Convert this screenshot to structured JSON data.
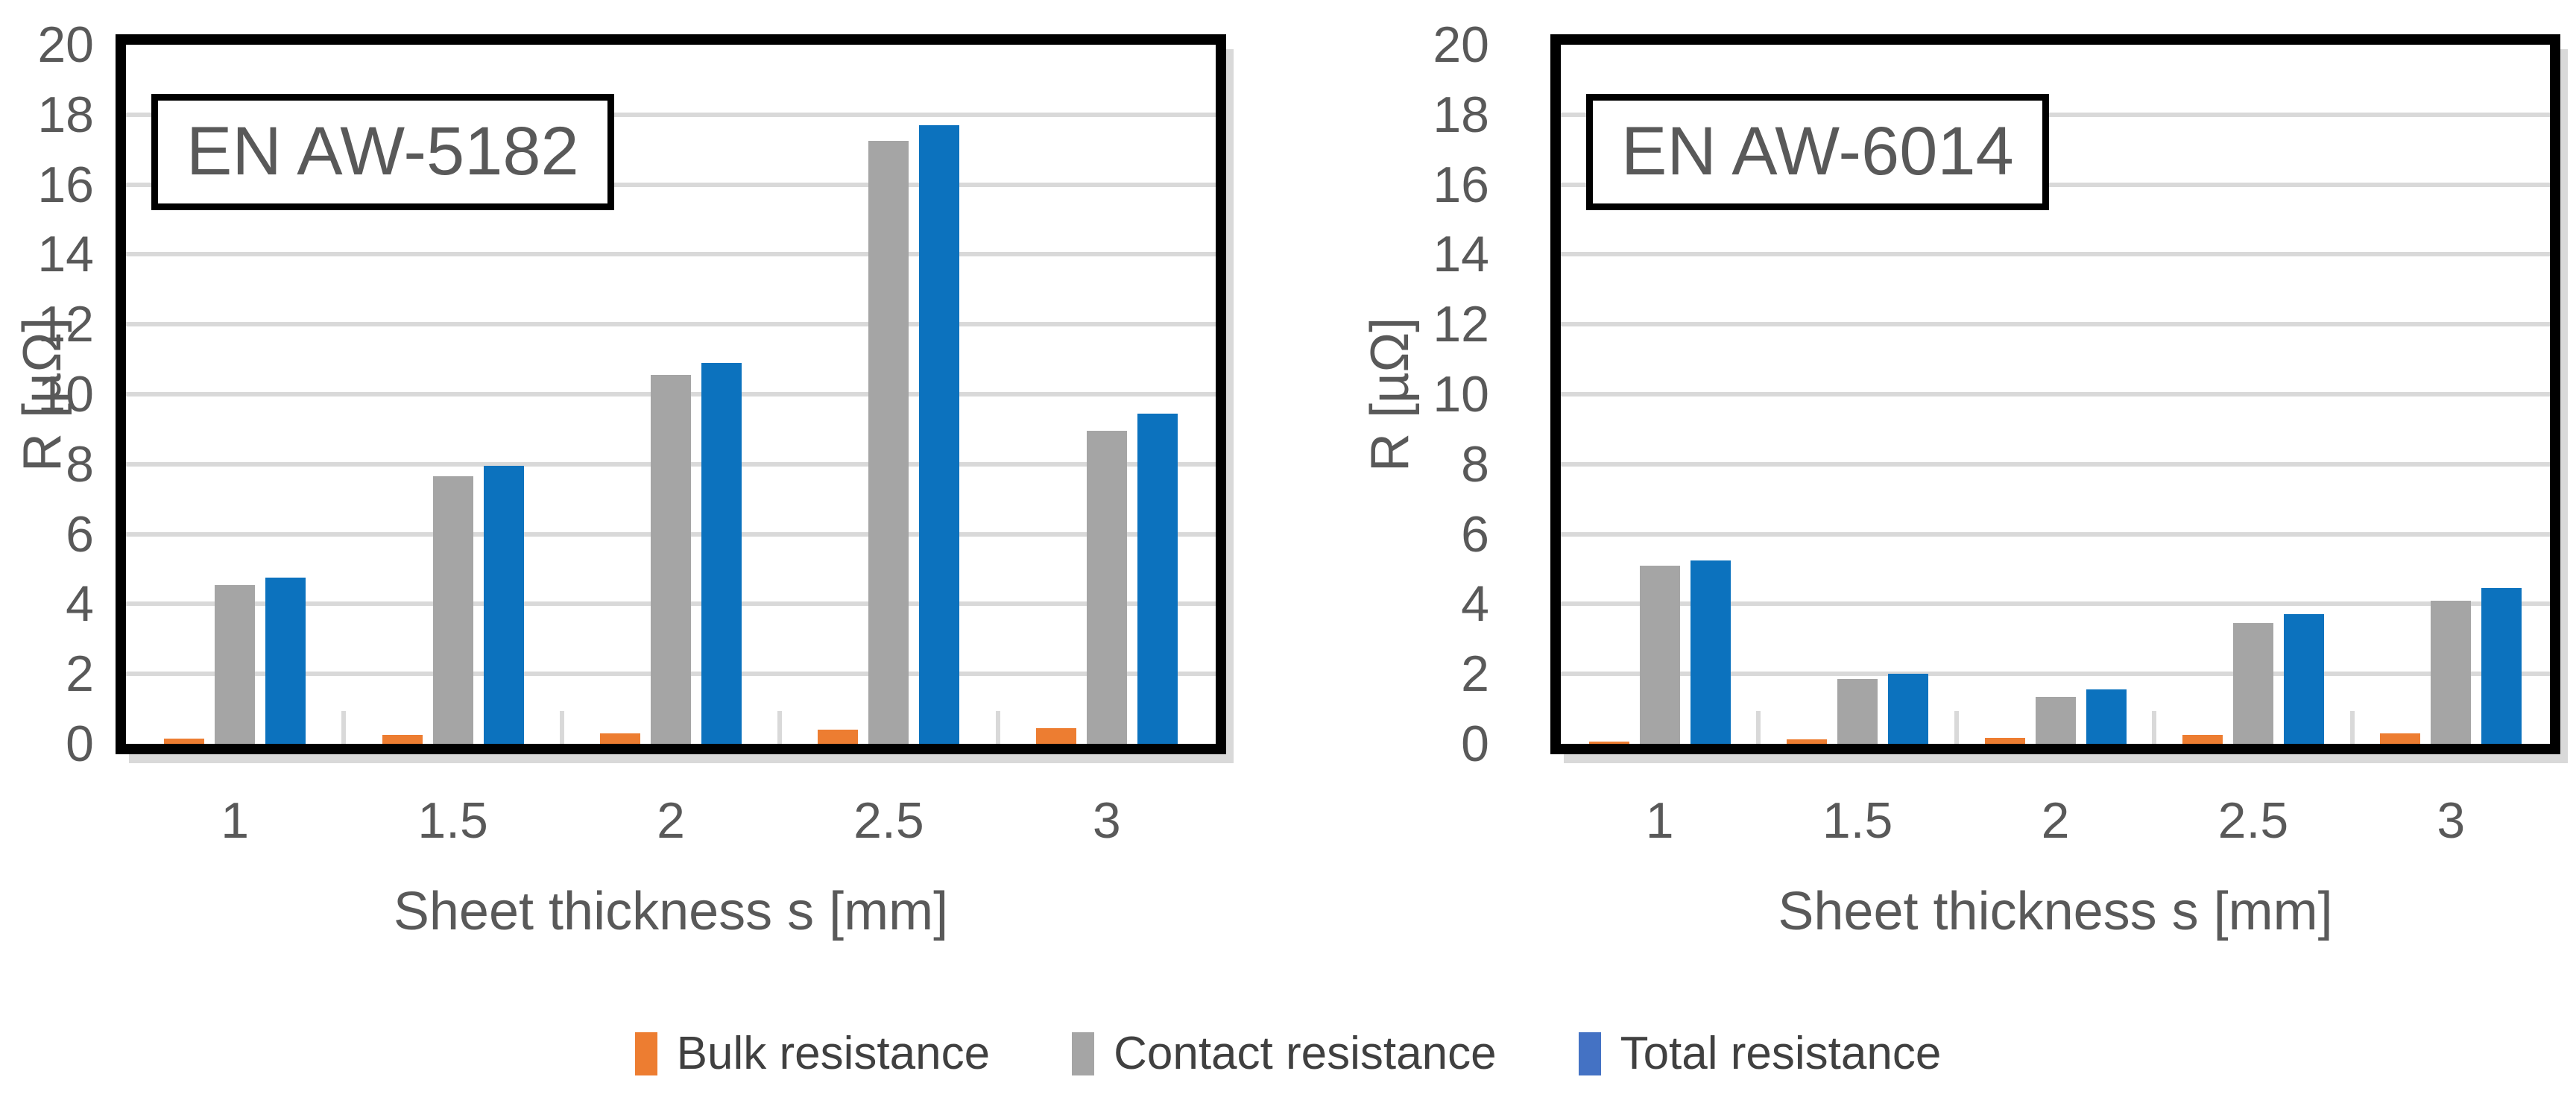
{
  "chart_data": [
    {
      "type": "bar",
      "title": "EN AW-5182",
      "xlabel": "Sheet thickness s [mm]",
      "ylabel": "R [µΩ]",
      "ylim": [
        0,
        20
      ],
      "ytick_step": 2,
      "grid": "horizontal",
      "legend_position": "bottom-shared",
      "categories": [
        "1",
        "1.5",
        "2",
        "2.5",
        "3"
      ],
      "series": [
        {
          "name": "Bulk resistance",
          "values": [
            0.15,
            0.25,
            0.3,
            0.4,
            0.45
          ]
        },
        {
          "name": "Contact resistance",
          "values": [
            4.55,
            7.65,
            10.55,
            17.25,
            8.95
          ]
        },
        {
          "name": "Total resistance",
          "values": [
            4.75,
            7.95,
            10.9,
            17.7,
            9.45
          ]
        }
      ]
    },
    {
      "type": "bar",
      "title": "EN AW-6014",
      "xlabel": "Sheet thickness s [mm]",
      "ylabel": "R [µΩ]",
      "ylim": [
        0,
        20
      ],
      "ytick_step": 2,
      "grid": "horizontal",
      "legend_position": "bottom-shared",
      "categories": [
        "1",
        "1.5",
        "2",
        "2.5",
        "3"
      ],
      "series": [
        {
          "name": "Bulk resistance",
          "values": [
            0.07,
            0.12,
            0.17,
            0.25,
            0.3
          ]
        },
        {
          "name": "Contact resistance",
          "values": [
            5.1,
            1.85,
            1.35,
            3.45,
            4.1
          ]
        },
        {
          "name": "Total resistance",
          "values": [
            5.25,
            2.0,
            1.55,
            3.7,
            4.45
          ]
        }
      ]
    }
  ],
  "legend": {
    "entries": [
      "Bulk resistance",
      "Contact resistance",
      "Total resistance"
    ]
  },
  "colors": {
    "series_fill": [
      "#ED7D31",
      "#A5A5A5",
      "#0C72BE"
    ],
    "legend_swatches": [
      "#ED7D31",
      "#A5A5A5",
      "#4472C4"
    ],
    "gridline": "#D9D9D9",
    "plot_border": "#000000",
    "axis_text": "#595959",
    "legend_text": "#404040",
    "shadow": "#D9D9D9",
    "background": "#FFFFFF"
  }
}
